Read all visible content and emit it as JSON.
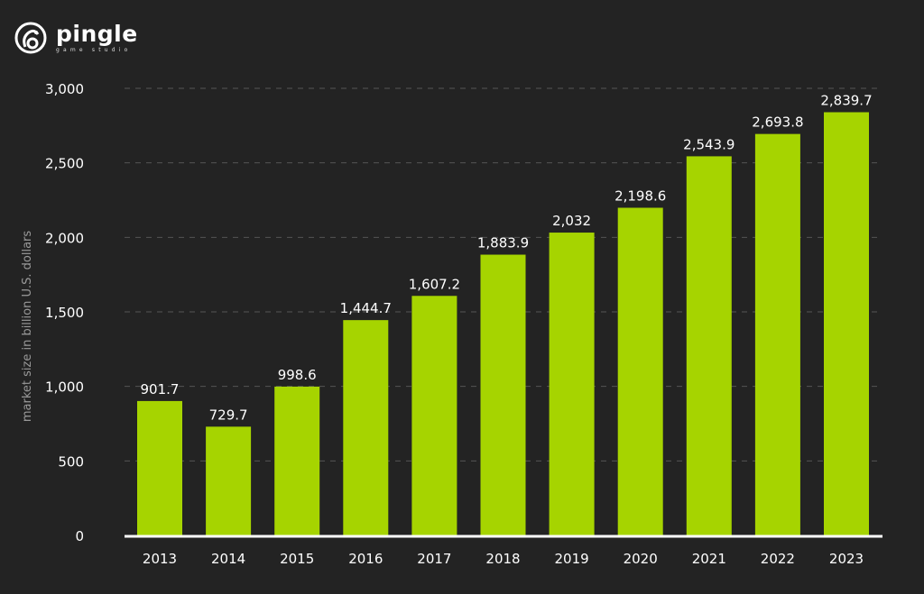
{
  "logo": {
    "name": "pingle",
    "tagline": "game studio"
  },
  "colors": {
    "background": "#232323",
    "bar": "#a6d400",
    "text": "#ffffff",
    "grid": "#555555"
  },
  "chart_data": {
    "type": "bar",
    "title": "",
    "xlabel": "",
    "ylabel": "market size in billion U.S. dollars",
    "categories": [
      "2013",
      "2014",
      "2015",
      "2016",
      "2017",
      "2018",
      "2019",
      "2020",
      "2021",
      "2022",
      "2023"
    ],
    "values": [
      901.7,
      729.7,
      998.6,
      1444.7,
      1607.2,
      1883.9,
      2032,
      2198.6,
      2543.9,
      2693.8,
      2839.7
    ],
    "data_labels": [
      "901.7",
      "729.7",
      "998.6",
      "1,444.7",
      "1,607.2",
      "1,883.9",
      "2,032",
      "2,198.6",
      "2,543.9",
      "2,693.8",
      "2,839.7"
    ],
    "ylim": [
      0,
      3000
    ],
    "yticks": [
      0,
      500,
      1000,
      1500,
      2000,
      2500,
      3000
    ],
    "ytick_labels": [
      "0",
      "500",
      "1,000",
      "1,500",
      "2,000",
      "2,500",
      "3,000"
    ],
    "grid": "horizontal dashed",
    "legend": "none"
  }
}
